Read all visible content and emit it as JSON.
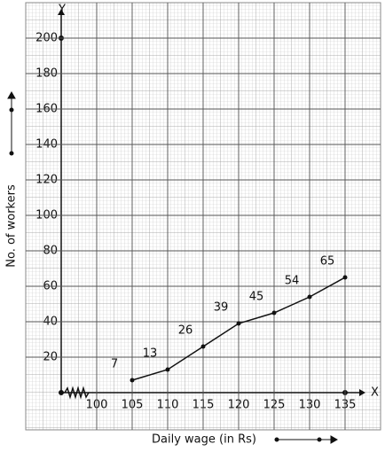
{
  "chart_data": {
    "type": "line",
    "x_label": "Daily wage (in Rs)",
    "y_label": "No. of workers",
    "x_axis_name": "X",
    "y_axis_name": "Y",
    "x": [
      105,
      110,
      115,
      120,
      125,
      130,
      135
    ],
    "values": [
      7,
      13,
      26,
      39,
      45,
      54,
      65
    ],
    "color": "#111111",
    "xlim": [
      95,
      137.5
    ],
    "ylim": [
      0,
      215
    ],
    "xticks": [
      100,
      105,
      110,
      115,
      120,
      125,
      130,
      135
    ],
    "yticks": [
      20,
      40,
      60,
      80,
      100,
      120,
      140,
      160,
      180,
      200
    ],
    "grid": true
  }
}
